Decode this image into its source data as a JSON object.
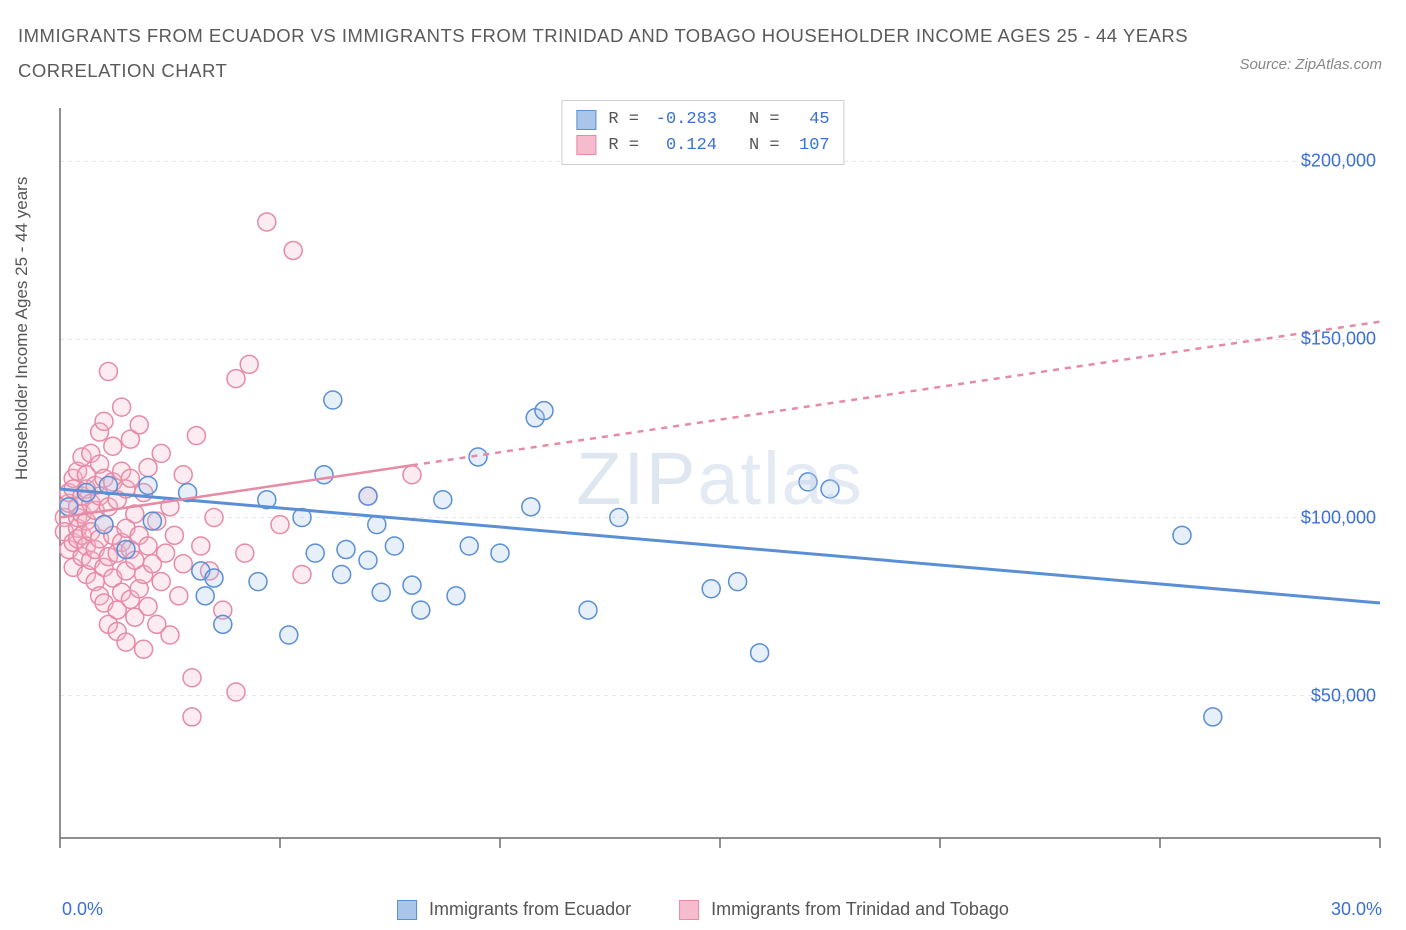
{
  "title_line1": "IMMIGRANTS FROM ECUADOR VS IMMIGRANTS FROM TRINIDAD AND TOBAGO HOUSEHOLDER INCOME AGES 25 - 44 YEARS",
  "title_line2": "CORRELATION CHART",
  "source_label": "Source: ZipAtlas.com",
  "y_axis_label": "Householder Income Ages 25 - 44 years",
  "watermark": "ZIPatlas",
  "chart": {
    "type": "scatter",
    "background_color": "#ffffff",
    "grid_color": "#e6e6e6",
    "axis_color": "#6a6a6a",
    "xlim": [
      0,
      30
    ],
    "ylim": [
      10000,
      215000
    ],
    "x_tick_positions": [
      0,
      5,
      10,
      15,
      20,
      25,
      30
    ],
    "x_min_label": "0.0%",
    "x_max_label": "30.0%",
    "y_ticks": [
      {
        "v": 50000,
        "label": "$50,000"
      },
      {
        "v": 100000,
        "label": "$100,000"
      },
      {
        "v": 150000,
        "label": "$150,000"
      },
      {
        "v": 200000,
        "label": "$200,000"
      }
    ],
    "marker_radius": 9,
    "marker_stroke_width": 1.5,
    "marker_fill_opacity": 0.28,
    "series": [
      {
        "id": "ecuador",
        "label": "Immigrants from Ecuador",
        "color_stroke": "#5a8fd6",
        "color_fill": "#a9c6ea",
        "R": "-0.283",
        "N": "45",
        "trend": {
          "x1": 0,
          "y1": 108000,
          "x2": 30,
          "y2": 76000,
          "dash": "none",
          "width": 3,
          "solid_until_x": 30
        },
        "points": [
          [
            0.2,
            103000
          ],
          [
            0.6,
            107000
          ],
          [
            1.0,
            98000
          ],
          [
            1.1,
            109000
          ],
          [
            1.5,
            91000
          ],
          [
            2.0,
            109000
          ],
          [
            2.1,
            99000
          ],
          [
            2.9,
            107000
          ],
          [
            3.2,
            85000
          ],
          [
            3.3,
            78000
          ],
          [
            3.5,
            83000
          ],
          [
            3.7,
            70000
          ],
          [
            4.5,
            82000
          ],
          [
            4.7,
            105000
          ],
          [
            5.2,
            67000
          ],
          [
            5.5,
            100000
          ],
          [
            5.8,
            90000
          ],
          [
            6.0,
            112000
          ],
          [
            6.2,
            133000
          ],
          [
            6.4,
            84000
          ],
          [
            6.5,
            91000
          ],
          [
            7.0,
            88000
          ],
          [
            7.0,
            106000
          ],
          [
            7.2,
            98000
          ],
          [
            7.3,
            79000
          ],
          [
            7.6,
            92000
          ],
          [
            8.0,
            81000
          ],
          [
            8.2,
            74000
          ],
          [
            8.7,
            105000
          ],
          [
            9.0,
            78000
          ],
          [
            9.3,
            92000
          ],
          [
            9.5,
            117000
          ],
          [
            10.0,
            90000
          ],
          [
            10.7,
            103000
          ],
          [
            10.8,
            128000
          ],
          [
            11.0,
            130000
          ],
          [
            12.0,
            74000
          ],
          [
            12.7,
            100000
          ],
          [
            14.8,
            80000
          ],
          [
            15.4,
            82000
          ],
          [
            15.9,
            62000
          ],
          [
            17.0,
            110000
          ],
          [
            17.5,
            108000
          ],
          [
            25.5,
            95000
          ],
          [
            26.2,
            44000
          ]
        ]
      },
      {
        "id": "trinidad",
        "label": "Immigrants from Trinidad and Tobago",
        "color_stroke": "#e78aa5",
        "color_fill": "#f4bccc",
        "R": "0.124",
        "N": "107",
        "trend": {
          "x1": 0,
          "y1": 100000,
          "x2": 30,
          "y2": 155000,
          "dash": "6,6",
          "width": 2.5,
          "solid_until_x": 8
        },
        "points": [
          [
            0.1,
            100000
          ],
          [
            0.1,
            96000
          ],
          [
            0.2,
            91000
          ],
          [
            0.2,
            104000
          ],
          [
            0.2,
            107000
          ],
          [
            0.3,
            86000
          ],
          [
            0.3,
            93000
          ],
          [
            0.3,
            111000
          ],
          [
            0.3,
            108000
          ],
          [
            0.4,
            97000
          ],
          [
            0.4,
            100000
          ],
          [
            0.4,
            94000
          ],
          [
            0.4,
            103000
          ],
          [
            0.4,
            113000
          ],
          [
            0.5,
            89000
          ],
          [
            0.5,
            95000
          ],
          [
            0.5,
            101000
          ],
          [
            0.5,
            106000
          ],
          [
            0.5,
            117000
          ],
          [
            0.6,
            84000
          ],
          [
            0.6,
            92000
          ],
          [
            0.6,
            99000
          ],
          [
            0.6,
            108000
          ],
          [
            0.6,
            112000
          ],
          [
            0.7,
            88000
          ],
          [
            0.7,
            96000
          ],
          [
            0.7,
            104000
          ],
          [
            0.7,
            118000
          ],
          [
            0.8,
            82000
          ],
          [
            0.8,
            91000
          ],
          [
            0.8,
            102000
          ],
          [
            0.8,
            109000
          ],
          [
            0.9,
            78000
          ],
          [
            0.9,
            94000
          ],
          [
            0.9,
            106000
          ],
          [
            0.9,
            115000
          ],
          [
            0.9,
            124000
          ],
          [
            1.0,
            76000
          ],
          [
            1.0,
            86000
          ],
          [
            1.0,
            98000
          ],
          [
            1.0,
            111000
          ],
          [
            1.0,
            127000
          ],
          [
            1.1,
            70000
          ],
          [
            1.1,
            89000
          ],
          [
            1.1,
            103000
          ],
          [
            1.1,
            141000
          ],
          [
            1.2,
            83000
          ],
          [
            1.2,
            95000
          ],
          [
            1.2,
            110000
          ],
          [
            1.2,
            120000
          ],
          [
            1.3,
            68000
          ],
          [
            1.3,
            74000
          ],
          [
            1.3,
            90000
          ],
          [
            1.3,
            105000
          ],
          [
            1.4,
            79000
          ],
          [
            1.4,
            93000
          ],
          [
            1.4,
            113000
          ],
          [
            1.4,
            131000
          ],
          [
            1.5,
            65000
          ],
          [
            1.5,
            85000
          ],
          [
            1.5,
            97000
          ],
          [
            1.5,
            108000
          ],
          [
            1.6,
            77000
          ],
          [
            1.6,
            91000
          ],
          [
            1.6,
            111000
          ],
          [
            1.6,
            122000
          ],
          [
            1.7,
            72000
          ],
          [
            1.7,
            88000
          ],
          [
            1.7,
            101000
          ],
          [
            1.8,
            80000
          ],
          [
            1.8,
            95000
          ],
          [
            1.8,
            126000
          ],
          [
            1.9,
            63000
          ],
          [
            1.9,
            84000
          ],
          [
            1.9,
            107000
          ],
          [
            2.0,
            75000
          ],
          [
            2.0,
            92000
          ],
          [
            2.0,
            114000
          ],
          [
            2.1,
            87000
          ],
          [
            2.2,
            70000
          ],
          [
            2.2,
            99000
          ],
          [
            2.3,
            82000
          ],
          [
            2.3,
            118000
          ],
          [
            2.4,
            90000
          ],
          [
            2.5,
            67000
          ],
          [
            2.5,
            103000
          ],
          [
            2.6,
            95000
          ],
          [
            2.7,
            78000
          ],
          [
            2.8,
            87000
          ],
          [
            2.8,
            112000
          ],
          [
            3.0,
            55000
          ],
          [
            3.0,
            44000
          ],
          [
            3.1,
            123000
          ],
          [
            3.2,
            92000
          ],
          [
            3.4,
            85000
          ],
          [
            3.5,
            100000
          ],
          [
            3.7,
            74000
          ],
          [
            4.0,
            139000
          ],
          [
            4.0,
            51000
          ],
          [
            4.2,
            90000
          ],
          [
            4.3,
            143000
          ],
          [
            4.7,
            183000
          ],
          [
            5.0,
            98000
          ],
          [
            5.3,
            175000
          ],
          [
            5.5,
            84000
          ],
          [
            7.0,
            106000
          ],
          [
            8.0,
            112000
          ]
        ]
      }
    ]
  },
  "legend_box": {
    "R_label": "R =",
    "N_label": "N ="
  }
}
